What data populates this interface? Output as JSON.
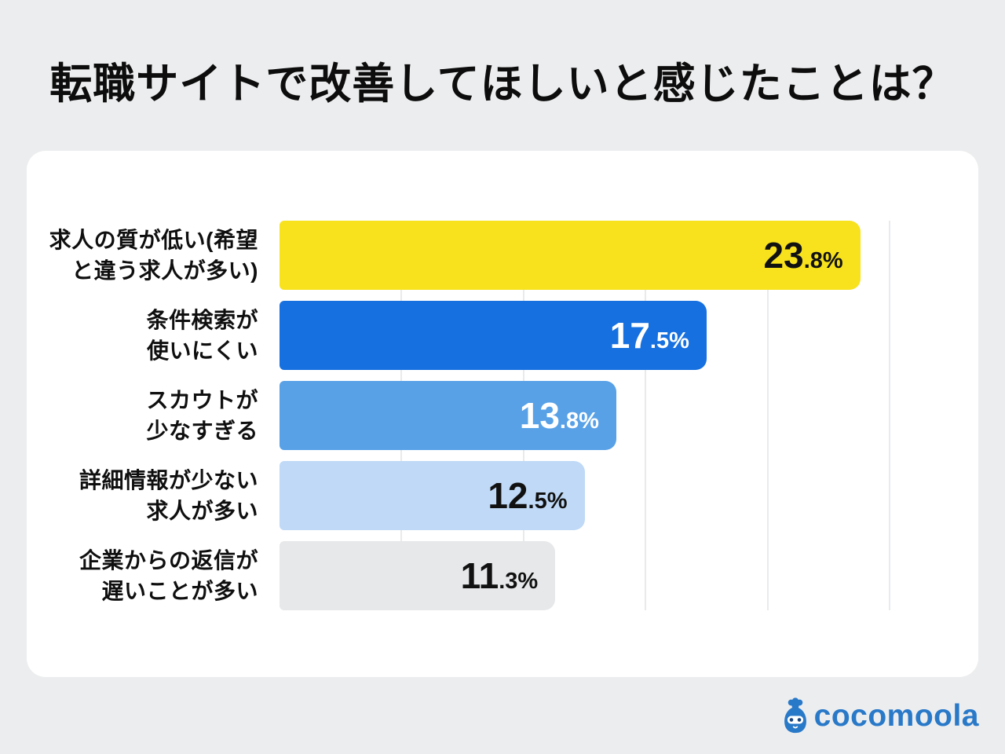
{
  "title": "転職サイトで改善してほしいと感じたことは？",
  "colors": {
    "background": "#ECEDEE",
    "panel": "#FFFFFF",
    "gridline": "#E9EAEC",
    "title_text": "#0D0D0D",
    "logo_blue": "#2979C9"
  },
  "chart_data": {
    "type": "bar",
    "orientation": "horizontal",
    "title": "転職サイトで改善してほしいと感じたことは？",
    "xlabel": "",
    "ylabel": "",
    "xlim": [
      0,
      25
    ],
    "grid": true,
    "gridline_interval_percent": 5,
    "categories": [
      "求人の質が低い(希望と違う求人が多い)",
      "条件検索が使いにくい",
      "スカウトが少なすぎる",
      "詳細情報が少ない求人が多い",
      "企業からの返信が遅いことが多い"
    ],
    "values": [
      23.8,
      17.5,
      13.8,
      12.5,
      11.3
    ],
    "rows": [
      {
        "label_lines": [
          "求人の質が低い(希望",
          "と違う求人が多い)"
        ],
        "value": 23.8,
        "value_main": "23",
        "value_sub": ".8%",
        "bar_color": "#F7E21D",
        "value_color": "#111111"
      },
      {
        "label_lines": [
          "条件検索が",
          "使いにくい"
        ],
        "value": 17.5,
        "value_main": "17",
        "value_sub": ".5%",
        "bar_color": "#1670DF",
        "value_color": "#FFFFFF"
      },
      {
        "label_lines": [
          "スカウトが",
          "少なすぎる"
        ],
        "value": 13.8,
        "value_main": "13",
        "value_sub": ".8%",
        "bar_color": "#58A1E7",
        "value_color": "#FFFFFF"
      },
      {
        "label_lines": [
          "詳細情報が少ない",
          "求人が多い"
        ],
        "value": 12.5,
        "value_main": "12",
        "value_sub": ".5%",
        "bar_color": "#BFD9F6",
        "value_color": "#111111"
      },
      {
        "label_lines": [
          "企業からの返信が",
          "遅いことが多い"
        ],
        "value": 11.3,
        "value_main": "11",
        "value_sub": ".3%",
        "bar_color": "#E6E8EA",
        "value_color": "#111111"
      }
    ]
  },
  "logo": {
    "text": "cocomoola",
    "icon": "money-bag-mascot-icon"
  }
}
